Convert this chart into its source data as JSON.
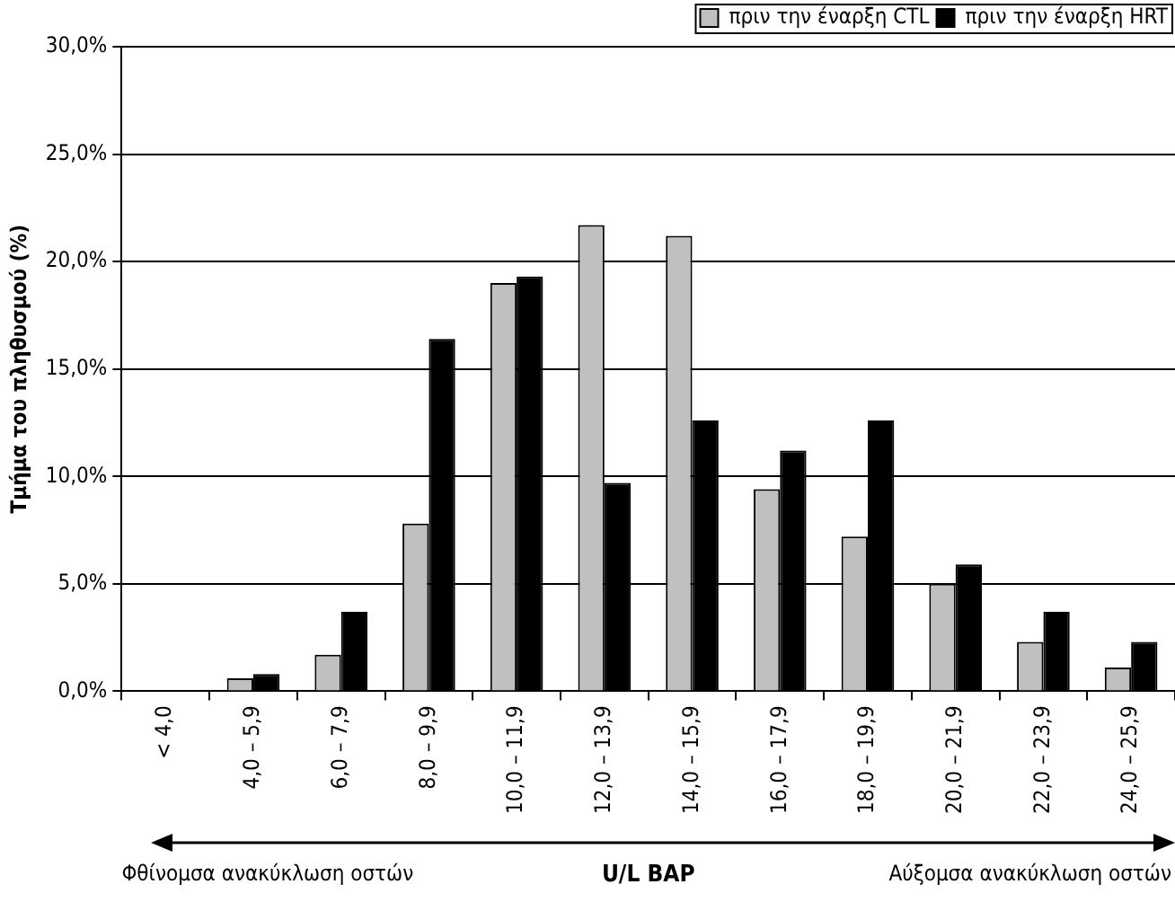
{
  "chart_data": {
    "type": "bar",
    "xlabel": "U/L BAP",
    "ylabel": "Τμήμα του πληθυσμού (%)",
    "categories": [
      "< 4,0",
      "4,0 – 5,9",
      "6,0 – 7,9",
      "8,0 – 9,9",
      "10,0 – 11,9",
      "12,0 – 13,9",
      "14,0 – 15,9",
      "16,0 – 17,9",
      "18,0 – 19,9",
      "20,0 – 21,9",
      "22,0 – 23,9",
      "24,0 – 25,9"
    ],
    "series": [
      {
        "name": "πριν την έναρξη CTL",
        "color": "#c0c0c0",
        "values": [
          0,
          0.6,
          1.7,
          7.8,
          19.0,
          21.7,
          21.2,
          9.4,
          7.2,
          5.0,
          2.3,
          1.1
        ]
      },
      {
        "name": "πριν την έναρξη HRT",
        "color": "#000000",
        "values": [
          0,
          0.8,
          3.7,
          16.4,
          19.3,
          9.7,
          12.6,
          11.2,
          12.6,
          5.9,
          3.7,
          2.3
        ]
      }
    ],
    "ylim": [
      0,
      30
    ],
    "yticks": [
      {
        "value": 0,
        "label": "0,0%"
      },
      {
        "value": 5,
        "label": "5,0%"
      },
      {
        "value": 10,
        "label": "10,0%"
      },
      {
        "value": 15,
        "label": "15,0%"
      },
      {
        "value": 20,
        "label": "20,0%"
      },
      {
        "value": 25,
        "label": "25,0%"
      },
      {
        "value": 30,
        "label": "30,0%"
      }
    ],
    "grid": "y",
    "legend": "top right",
    "annotations": [
      "Φθίνομσα ανακύκλωση οστών",
      "Αύξομσα ανακύκλωση οστών"
    ]
  }
}
